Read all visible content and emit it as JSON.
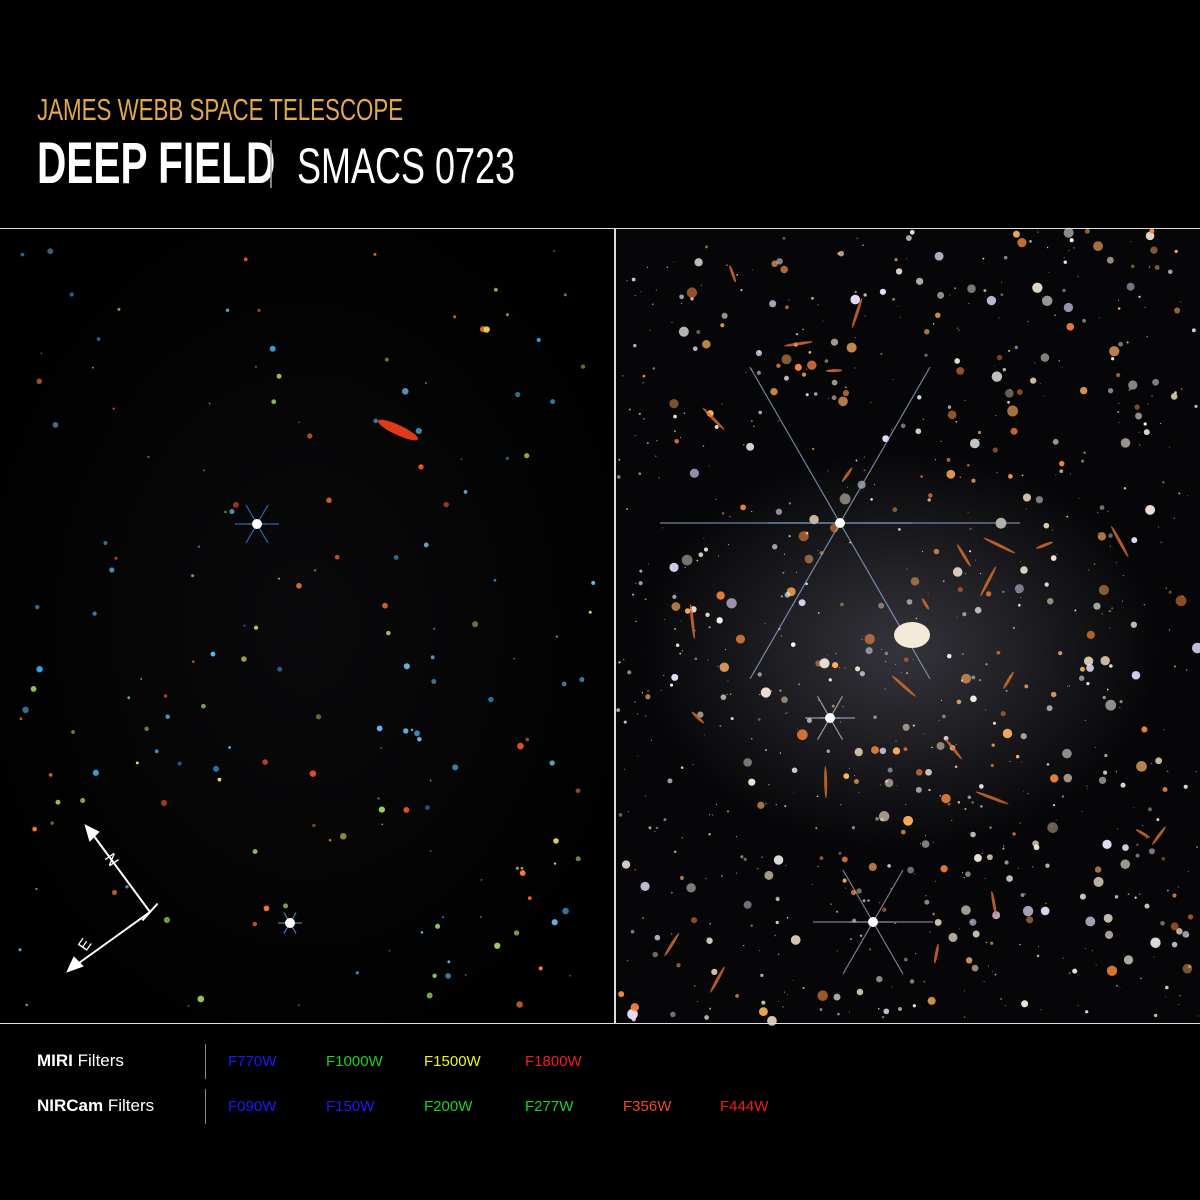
{
  "header": {
    "kicker": "JAMES WEBB SPACE TELESCOPE",
    "title": "DEEP FIELD",
    "target": "SMACS 0723"
  },
  "compass": {
    "north": "N",
    "east": "E"
  },
  "filters": [
    {
      "instrument": "MIRI",
      "label": "Filters",
      "items": [
        {
          "name": "F770W",
          "color": "#1a1aff"
        },
        {
          "name": "F1000W",
          "color": "#1fd21f"
        },
        {
          "name": "F1500W",
          "color": "#f2f21a"
        },
        {
          "name": "F1800W",
          "color": "#f01e1e"
        }
      ]
    },
    {
      "instrument": "NIRCam",
      "label": "Filters",
      "items": [
        {
          "name": "F090W",
          "color": "#1a1aff"
        },
        {
          "name": "F150W",
          "color": "#1a1aff"
        },
        {
          "name": "F200W",
          "color": "#1fd21f"
        },
        {
          "name": "F277W",
          "color": "#1fd21f"
        },
        {
          "name": "F356W",
          "color": "#f04a2a"
        },
        {
          "name": "F444W",
          "color": "#f01e1e"
        }
      ]
    }
  ]
}
